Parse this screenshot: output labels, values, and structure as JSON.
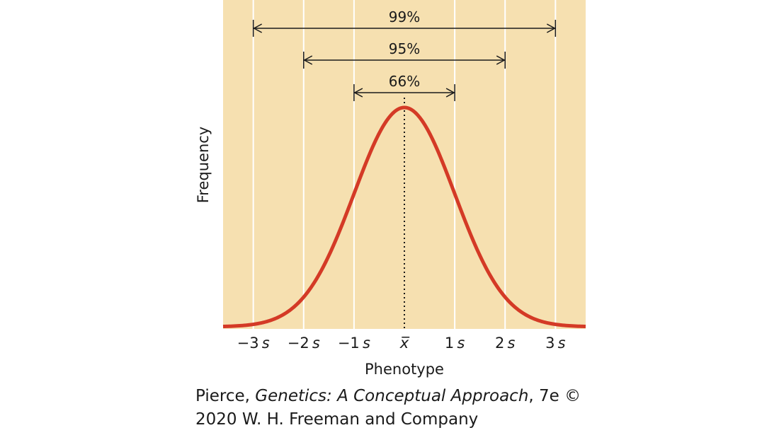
{
  "chart_data": {
    "type": "line",
    "curve": "normal distribution",
    "xlabel": "Phenotype",
    "ylabel": "Frequency",
    "x_ticks": [
      {
        "value": -3,
        "sign": "−3",
        "unit": "s"
      },
      {
        "value": -2,
        "sign": "−2",
        "unit": "s"
      },
      {
        "value": -1,
        "sign": "−1",
        "unit": "s"
      },
      {
        "value": 0,
        "sign": "",
        "unit": "x̅"
      },
      {
        "value": 1,
        "sign": "1",
        "unit": "s"
      },
      {
        "value": 2,
        "sign": "2",
        "unit": "s"
      },
      {
        "value": 3,
        "sign": "3",
        "unit": "s"
      }
    ],
    "xlim": [
      -3.6,
      3.6
    ],
    "mean": 0,
    "sd": 1,
    "intervals": [
      {
        "label": "99%",
        "from": -3,
        "to": 3
      },
      {
        "label": "95%",
        "from": -2,
        "to": 2
      },
      {
        "label": "66%",
        "from": -1,
        "to": 1
      }
    ],
    "grid": true,
    "colors": {
      "background": "#f6e0b0",
      "curve": "#d43a26",
      "grid": "#ffffff",
      "text": "#1a1a1a"
    }
  },
  "caption": {
    "author": "Pierce, ",
    "title": "Genetics: A Conceptual Approach",
    "rest": ", 7e ©",
    "line2": "2020 W. H. Freeman and Company"
  }
}
